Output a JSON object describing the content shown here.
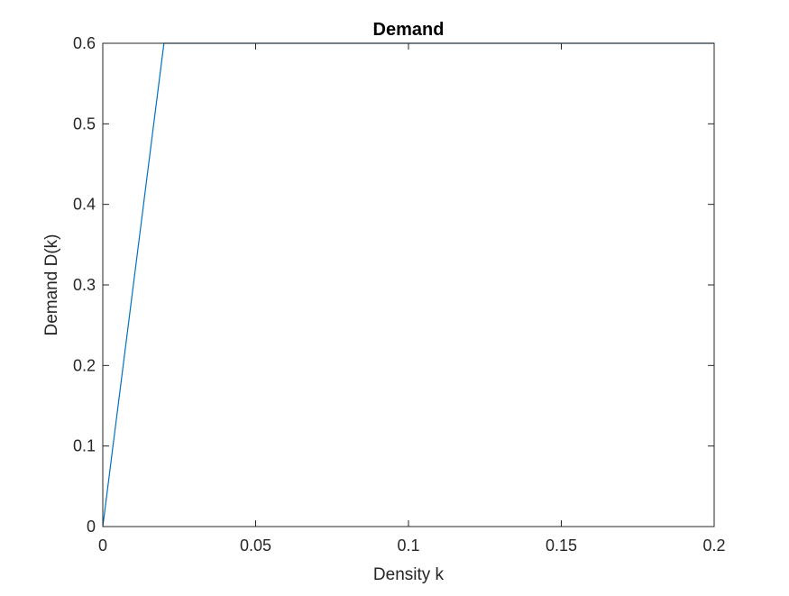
{
  "figure": {
    "background": "#ffffff"
  },
  "chart_data": {
    "type": "line",
    "title": "Demand",
    "xlabel": "Density k",
    "ylabel": "Demand D(k)",
    "xlim": [
      0,
      0.2
    ],
    "ylim": [
      0,
      0.6
    ],
    "xticks": [
      0,
      0.05,
      0.1,
      0.15,
      0.2
    ],
    "xtick_labels": [
      "0",
      "0.05",
      "0.1",
      "0.15",
      "0.2"
    ],
    "yticks": [
      0,
      0.1,
      0.2,
      0.3,
      0.4,
      0.5,
      0.6
    ],
    "ytick_labels": [
      "0",
      "0.1",
      "0.2",
      "0.3",
      "0.4",
      "0.5",
      "0.6"
    ],
    "grid": false,
    "box": true,
    "series": [
      {
        "color": "#0072bd",
        "x": [
          0,
          0.02,
          0.2
        ],
        "y": [
          0,
          0.6,
          0.6
        ]
      }
    ],
    "axis_color": "#262626"
  }
}
